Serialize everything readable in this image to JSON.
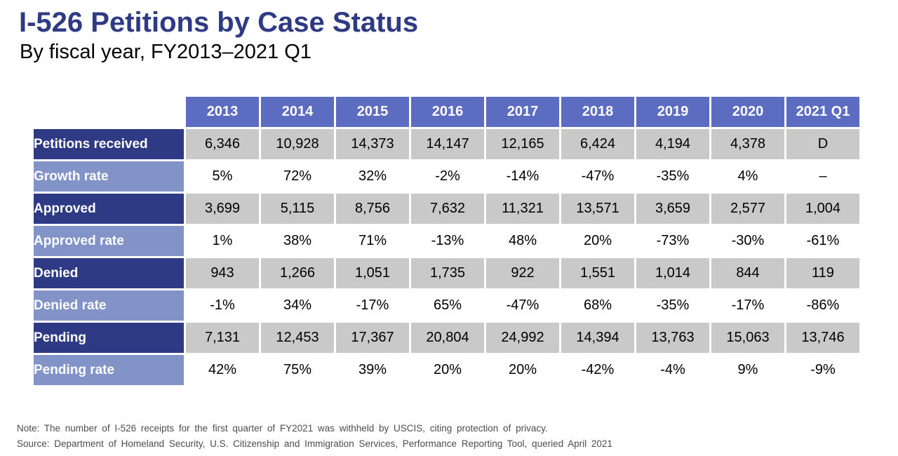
{
  "header": {
    "title": "I-526 Petitions by Case Status",
    "subtitle": "By fiscal year, FY2013–2021 Q1"
  },
  "footer": {
    "note": "Note: The number of I-526 receipts for the first quarter of FY2021 was withheld by USCIS, citing protection of privacy.",
    "source": "Source: Department of Homeland Security, U.S. Citizenship and Immigration Services, Performance Reporting Tool, queried April 2021"
  },
  "colors": {
    "title_navy": "#2E3B84",
    "header_blue": "#5C6CC0",
    "label_dark_navy": "#2E3B84",
    "label_light_blue": "#8193C7",
    "cell_gray": "#C9C9C9",
    "note_gray": "#4d4d4d"
  },
  "chart_data": {
    "type": "table",
    "title": "I-526 Petitions by Case Status",
    "subtitle": "By fiscal year, FY2013–2021 Q1",
    "columns": [
      "2013",
      "2014",
      "2015",
      "2016",
      "2017",
      "2018",
      "2019",
      "2020",
      "2021 Q1"
    ],
    "rows": [
      {
        "label": "Petitions received",
        "emphasis": "dark",
        "cell_bg": "gray",
        "values": [
          "6,346",
          "10,928",
          "14,373",
          "14,147",
          "12,165",
          "6,424",
          "4,194",
          "4,378",
          "D"
        ]
      },
      {
        "label": "Growth rate",
        "emphasis": "light",
        "cell_bg": "white",
        "values": [
          "5%",
          "72%",
          "32%",
          "-2%",
          "-14%",
          "-47%",
          "-35%",
          "4%",
          "–"
        ]
      },
      {
        "label": "Approved",
        "emphasis": "dark",
        "cell_bg": "gray",
        "values": [
          "3,699",
          "5,115",
          "8,756",
          "7,632",
          "11,321",
          "13,571",
          "3,659",
          "2,577",
          "1,004"
        ]
      },
      {
        "label": "Approved rate",
        "emphasis": "light",
        "cell_bg": "white",
        "values": [
          "1%",
          "38%",
          "71%",
          "-13%",
          "48%",
          "20%",
          "-73%",
          "-30%",
          "-61%"
        ]
      },
      {
        "label": "Denied",
        "emphasis": "dark",
        "cell_bg": "gray",
        "values": [
          "943",
          "1,266",
          "1,051",
          "1,735",
          "922",
          "1,551",
          "1,014",
          "844",
          "119"
        ]
      },
      {
        "label": "Denied rate",
        "emphasis": "light",
        "cell_bg": "white",
        "values": [
          "-1%",
          "34%",
          "-17%",
          "65%",
          "-47%",
          "68%",
          "-35%",
          "-17%",
          "-86%"
        ]
      },
      {
        "label": "Pending",
        "emphasis": "dark",
        "cell_bg": "gray",
        "values": [
          "7,131",
          "12,453",
          "17,367",
          "20,804",
          "24,992",
          "14,394",
          "13,763",
          "15,063",
          "13,746"
        ]
      },
      {
        "label": "Pending rate",
        "emphasis": "light",
        "cell_bg": "white",
        "values": [
          "42%",
          "75%",
          "39%",
          "20%",
          "20%",
          "-42%",
          "-4%",
          "9%",
          "-9%"
        ]
      }
    ]
  }
}
